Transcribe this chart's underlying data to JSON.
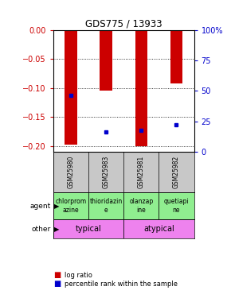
{
  "title": "GDS775 / 13933",
  "samples": [
    "GSM25980",
    "GSM25983",
    "GSM25981",
    "GSM25982"
  ],
  "log_ratios": [
    -0.198,
    -0.105,
    -0.2,
    -0.092
  ],
  "percentile_ranks_pct": [
    46,
    16.5,
    17.5,
    22
  ],
  "ylim": [
    0.0,
    -0.21
  ],
  "yticks_left": [
    0.0,
    -0.05,
    -0.1,
    -0.15,
    -0.2
  ],
  "yticks_right_pct": [
    100,
    75,
    50,
    25,
    0
  ],
  "agents": [
    "chlorprom\nazine",
    "thioridazin\ne",
    "olanzap\nine",
    "quetiapi\nne"
  ],
  "agent_colors": [
    "#90ee90",
    "#90ee90",
    "#90ee90",
    "#90ee90"
  ],
  "other_groups": [
    [
      "typical",
      2
    ],
    [
      "atypical",
      2
    ]
  ],
  "other_color": "#ee82ee",
  "bar_color": "#cc0000",
  "dot_color": "#0000cc",
  "bg_color": "#ffffff",
  "label_color_left": "#cc0000",
  "label_color_right": "#0000cc",
  "bar_width": 0.35,
  "dot_size": 3.5,
  "sample_box_color": "#c8c8c8"
}
